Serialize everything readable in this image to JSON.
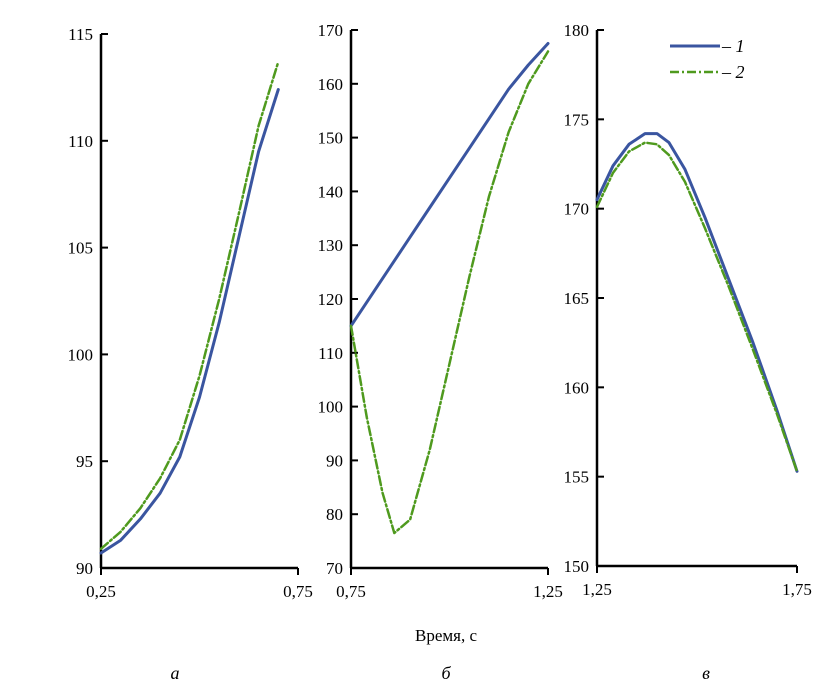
{
  "chart_data": {
    "type": "line",
    "xlabel": "Время, с",
    "legend": {
      "position": "top-right",
      "entries": [
        {
          "key": "s1",
          "label": "– 1",
          "color": "#3a55a0",
          "style": "solid"
        },
        {
          "key": "s2",
          "label": "– 2",
          "color": "#4f9a1e",
          "style": "dash-dot"
        }
      ]
    },
    "panels": [
      {
        "caption": "а",
        "xlim": [
          0.25,
          0.75
        ],
        "xticks": [
          "0,25",
          "0,75"
        ],
        "ylim": [
          90,
          115
        ],
        "yticks": [
          "90",
          "95",
          "100",
          "105",
          "110",
          "115"
        ],
        "series": [
          {
            "key": "s1",
            "name": "1",
            "x": [
              0.25,
              0.3,
              0.35,
              0.4,
              0.45,
              0.5,
              0.55,
              0.6,
              0.65,
              0.7
            ],
            "y": [
              90.7,
              91.3,
              92.3,
              93.5,
              95.2,
              98.0,
              101.5,
              105.5,
              109.5,
              112.4
            ]
          },
          {
            "key": "s2",
            "name": "2",
            "x": [
              0.25,
              0.3,
              0.35,
              0.4,
              0.45,
              0.5,
              0.55,
              0.6,
              0.65,
              0.7
            ],
            "y": [
              90.9,
              91.7,
              92.8,
              94.2,
              96.0,
              99.0,
              102.6,
              106.6,
              110.7,
              113.7
            ]
          }
        ]
      },
      {
        "caption": "б",
        "xlim": [
          0.75,
          1.25
        ],
        "xticks": [
          "0,75",
          "1,25"
        ],
        "ylim": [
          70,
          170
        ],
        "yticks": [
          "70",
          "80",
          "90",
          "100",
          "110",
          "120",
          "130",
          "140",
          "150",
          "160",
          "170"
        ],
        "series": [
          {
            "key": "s1",
            "name": "1",
            "x": [
              0.75,
              0.8,
              0.85,
              0.9,
              0.95,
              1.0,
              1.05,
              1.1,
              1.15,
              1.2,
              1.25
            ],
            "y": [
              115,
              120.5,
              126,
              131.5,
              137,
              142.5,
              148,
              153.5,
              159,
              163.5,
              167.5
            ]
          },
          {
            "key": "s2",
            "name": "2",
            "x": [
              0.75,
              0.79,
              0.83,
              0.86,
              0.9,
              0.95,
              1.0,
              1.05,
              1.1,
              1.15,
              1.2,
              1.25
            ],
            "y": [
              115,
              98,
              84,
              76.5,
              79,
              92,
              108,
              124,
              139,
              151,
              160,
              166
            ]
          }
        ]
      },
      {
        "caption": "в",
        "xlim": [
          1.25,
          1.75
        ],
        "xticks": [
          "1,25",
          "1,75"
        ],
        "ylim": [
          150,
          180
        ],
        "yticks": [
          "150",
          "155",
          "160",
          "165",
          "170",
          "175",
          "180"
        ],
        "series": [
          {
            "key": "s1",
            "name": "1",
            "x": [
              1.25,
              1.29,
              1.33,
              1.37,
              1.4,
              1.43,
              1.47,
              1.52,
              1.58,
              1.64,
              1.7,
              1.75
            ],
            "y": [
              170.5,
              172.4,
              173.6,
              174.2,
              174.2,
              173.7,
              172.2,
              169.5,
              166.0,
              162.5,
              158.7,
              155.3
            ]
          },
          {
            "key": "s2",
            "name": "2",
            "x": [
              1.25,
              1.29,
              1.33,
              1.37,
              1.4,
              1.43,
              1.47,
              1.52,
              1.58,
              1.64,
              1.7,
              1.75
            ],
            "y": [
              170.1,
              172.0,
              173.2,
              173.7,
              173.6,
              173.0,
              171.5,
              168.9,
              165.6,
              162.1,
              158.5,
              155.3
            ]
          }
        ]
      }
    ]
  }
}
